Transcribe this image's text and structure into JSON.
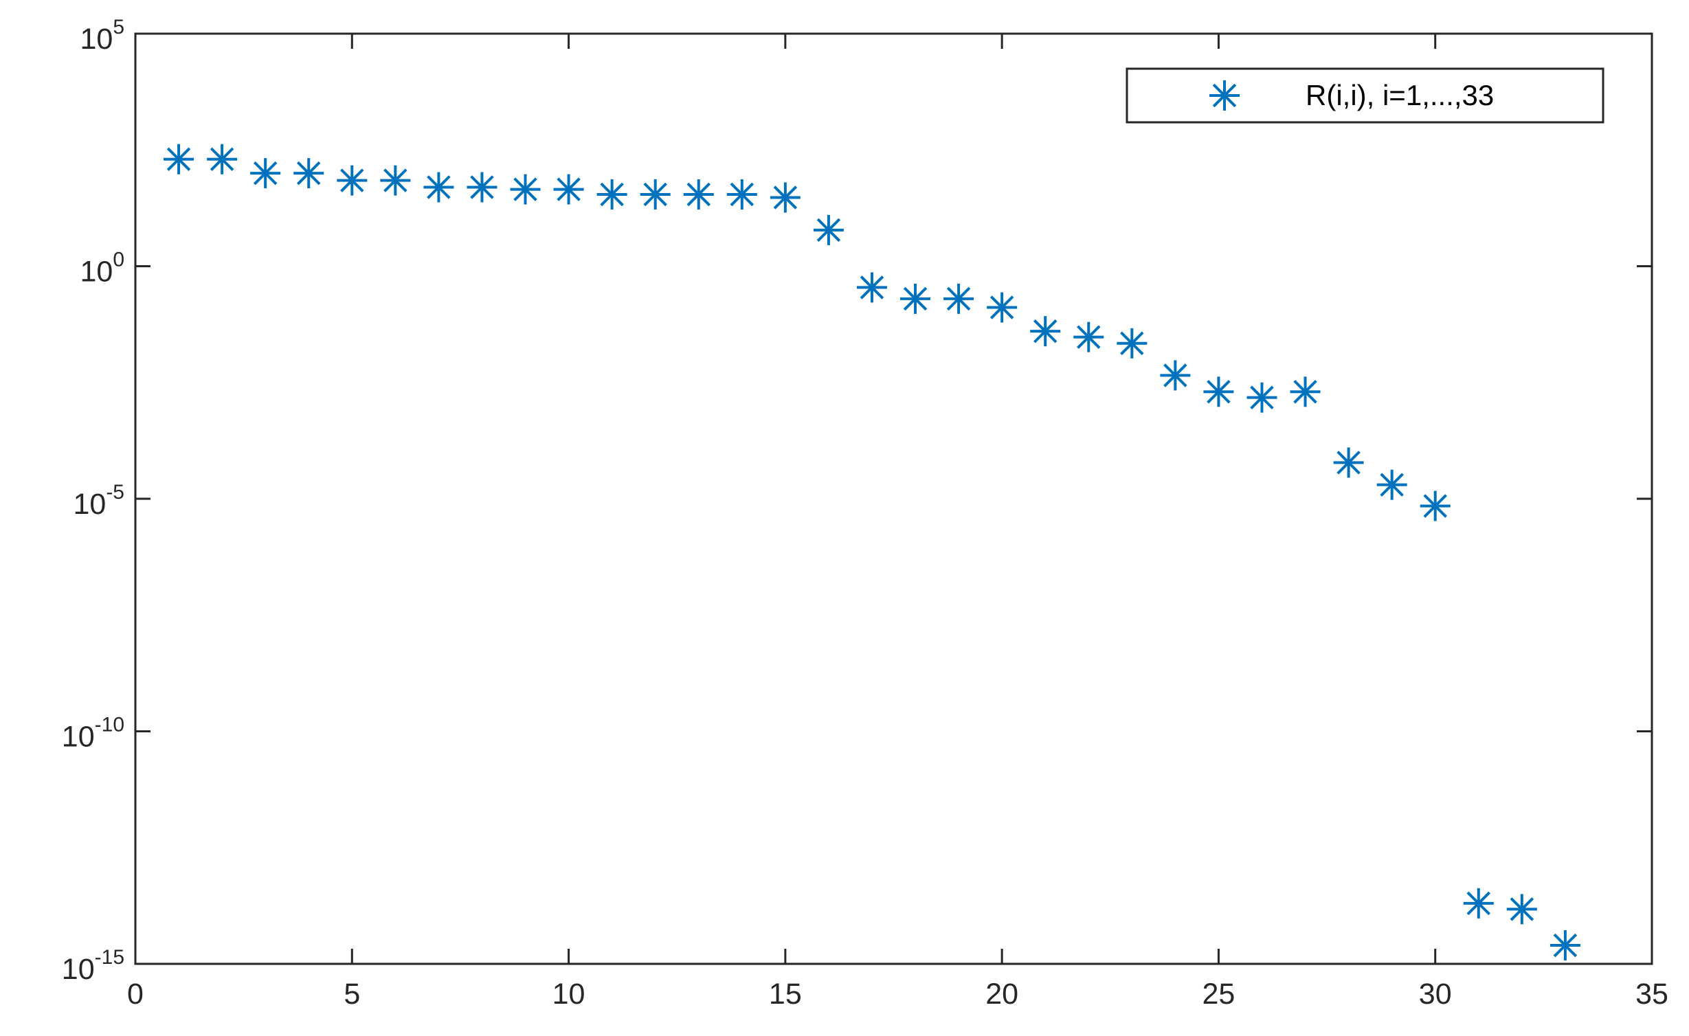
{
  "chart_data": {
    "type": "scatter",
    "title": "",
    "xlabel": "",
    "ylabel": "",
    "xlim": [
      0,
      35
    ],
    "ylim": [
      1e-15,
      100000.0
    ],
    "yscale": "log",
    "grid": false,
    "marker": "asterisk",
    "marker_color": "#0072BD",
    "legend_placement": "top-right",
    "x_ticks": [
      0,
      5,
      10,
      15,
      20,
      25,
      30,
      35
    ],
    "y_ticks": [
      {
        "base": "10",
        "exp": "-15",
        "value": 1e-15
      },
      {
        "base": "10",
        "exp": "-10",
        "value": 1e-10
      },
      {
        "base": "10",
        "exp": "-5",
        "value": 1e-05
      },
      {
        "base": "10",
        "exp": "0",
        "value": 1
      },
      {
        "base": "10",
        "exp": "5",
        "value": 100000.0
      }
    ],
    "series": [
      {
        "name": "R(i,i), i=1,...,33",
        "x": [
          1,
          2,
          3,
          4,
          5,
          6,
          7,
          8,
          9,
          10,
          11,
          12,
          13,
          14,
          15,
          16,
          17,
          18,
          19,
          20,
          21,
          22,
          23,
          24,
          25,
          26,
          27,
          28,
          29,
          30,
          31,
          32,
          33
        ],
        "y": [
          200,
          200,
          100,
          100,
          70,
          70,
          50,
          50,
          45,
          45,
          35,
          35,
          35,
          35,
          30,
          6,
          0.35,
          0.2,
          0.2,
          0.13,
          0.04,
          0.03,
          0.022,
          0.0045,
          0.002,
          0.0015,
          0.002,
          6e-05,
          2e-05,
          7e-06,
          2e-14,
          1.5e-14,
          2.5e-15
        ]
      }
    ]
  }
}
